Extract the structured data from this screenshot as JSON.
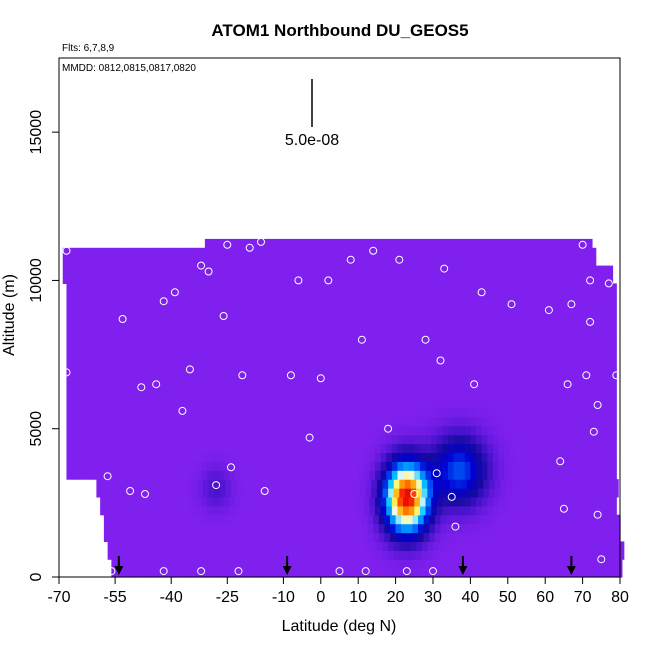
{
  "chart_data": {
    "type": "heatmap",
    "title": "ATOM1 Northbound DU_GEOS5",
    "annotations": [
      "Flts: 6,7,8,9",
      "MMDD: 0812,0815,0817,0820"
    ],
    "scale_label": "5.0e-08",
    "xlabel": "Latitude (deg N)",
    "ylabel": "Altitude (m)",
    "xlim": [
      -70,
      80
    ],
    "ylim": [
      0,
      17500
    ],
    "x_ticks": [
      -70,
      -55,
      -40,
      -25,
      -10,
      0,
      10,
      20,
      30,
      40,
      50,
      60,
      70,
      80
    ],
    "y_ticks": [
      0,
      5000,
      10000,
      15000
    ],
    "field": {
      "background_color": "#8020ee",
      "value_unit_scale": 5e-08,
      "blobs": [
        {
          "lat": 23,
          "alt": 2700,
          "peak": 1.0,
          "lat_width": 5.5,
          "alt_width": 1100
        },
        {
          "lat": 37,
          "alt": 3600,
          "peak": 0.32,
          "lat_width": 7,
          "alt_width": 1100
        },
        {
          "lat": -28,
          "alt": 3000,
          "peak": 0.07,
          "lat_width": 4,
          "alt_width": 700
        }
      ]
    },
    "sample_points": [
      [
        -68,
        11000
      ],
      [
        -57,
        3400
      ],
      [
        -53,
        8700
      ],
      [
        -51,
        2900
      ],
      [
        -48,
        6400
      ],
      [
        -47,
        2800
      ],
      [
        -44,
        6500
      ],
      [
        -42,
        9300
      ],
      [
        -39,
        9600
      ],
      [
        -37,
        5600
      ],
      [
        -35,
        7000
      ],
      [
        -32,
        10500
      ],
      [
        -30,
        10300
      ],
      [
        -28,
        3100
      ],
      [
        -26,
        8800
      ],
      [
        -25,
        11200
      ],
      [
        -24,
        3700
      ],
      [
        -21,
        6800
      ],
      [
        -19,
        11100
      ],
      [
        -16,
        11300
      ],
      [
        -15,
        2900
      ],
      [
        -8,
        6800
      ],
      [
        -6,
        10000
      ],
      [
        -3,
        4700
      ],
      [
        0,
        6700
      ],
      [
        2,
        10000
      ],
      [
        8,
        10700
      ],
      [
        11,
        8000
      ],
      [
        14,
        11000
      ],
      [
        18,
        5000
      ],
      [
        21,
        10700
      ],
      [
        25,
        2800
      ],
      [
        28,
        8000
      ],
      [
        31,
        3500
      ],
      [
        32,
        7300
      ],
      [
        33,
        10400
      ],
      [
        35,
        2700
      ],
      [
        36,
        1700
      ],
      [
        41,
        6500
      ],
      [
        43,
        9600
      ],
      [
        51,
        9200
      ],
      [
        61,
        9000
      ],
      [
        64,
        3900
      ],
      [
        65,
        2300
      ],
      [
        66,
        6500
      ],
      [
        67,
        9200
      ],
      [
        70,
        11200
      ],
      [
        71,
        6800
      ],
      [
        72,
        8600
      ],
      [
        72,
        10000
      ],
      [
        73,
        4900
      ],
      [
        74,
        5800
      ],
      [
        74,
        2100
      ],
      [
        75,
        600
      ],
      [
        77,
        9900
      ],
      [
        79,
        6800
      ],
      [
        -68,
        6900
      ],
      [
        -68,
        3100
      ],
      [
        -56,
        200
      ],
      [
        -42,
        200
      ],
      [
        -32,
        200
      ],
      [
        -22,
        200
      ],
      [
        5,
        200
      ],
      [
        12,
        200
      ],
      [
        23,
        200
      ],
      [
        30,
        200
      ]
    ],
    "flight_markers_lat": [
      -54,
      -9,
      38,
      67
    ],
    "grid": false,
    "legend": "none"
  }
}
